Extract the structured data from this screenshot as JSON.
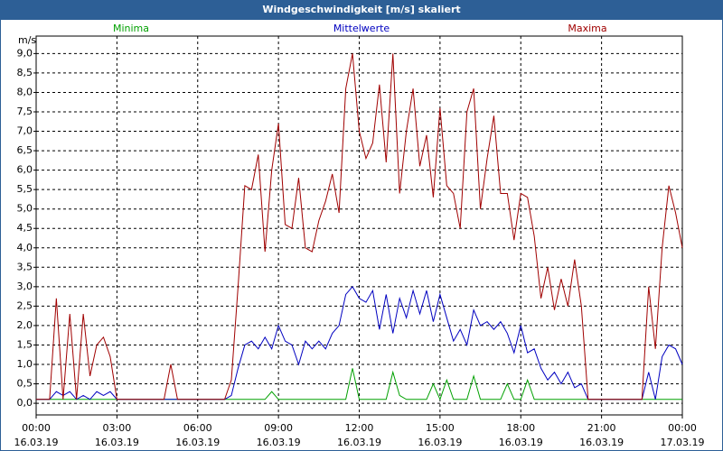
{
  "chart_data": {
    "type": "line",
    "title": "Windgeschwindigkeit [m/s] skaliert",
    "y_label": "m/s",
    "x": [
      0,
      0.25,
      0.5,
      0.75,
      1,
      1.25,
      1.5,
      1.75,
      2,
      2.25,
      2.5,
      2.75,
      3,
      3.25,
      3.5,
      3.75,
      4,
      4.25,
      4.5,
      4.75,
      5,
      5.25,
      5.5,
      5.75,
      6,
      6.25,
      6.5,
      6.75,
      7,
      7.25,
      7.5,
      7.75,
      8,
      8.25,
      8.5,
      8.75,
      9,
      9.25,
      9.5,
      9.75,
      10,
      10.25,
      10.5,
      10.75,
      11,
      11.25,
      11.5,
      11.75,
      12,
      12.25,
      12.5,
      12.75,
      13,
      13.25,
      13.5,
      13.75,
      14,
      14.25,
      14.5,
      14.75,
      15,
      15.25,
      15.5,
      15.75,
      16,
      16.25,
      16.5,
      16.75,
      17,
      17.25,
      17.5,
      17.75,
      18,
      18.25,
      18.5,
      18.75,
      19,
      19.25,
      19.5,
      19.75,
      20,
      20.25,
      20.5,
      20.75,
      21,
      21.25,
      21.5,
      21.75,
      22,
      22.25,
      22.5,
      22.75,
      23,
      23.25,
      23.5,
      23.75,
      24
    ],
    "series": [
      {
        "name": "Minima",
        "color": "#00a000",
        "values": [
          0.1,
          0.1,
          0.1,
          0.1,
          0.1,
          0.1,
          0.1,
          0.1,
          0.1,
          0.1,
          0.1,
          0.1,
          0.1,
          0.1,
          0.1,
          0.1,
          0.1,
          0.1,
          0.1,
          0.1,
          0.1,
          0.1,
          0.1,
          0.1,
          0.1,
          0.1,
          0.1,
          0.1,
          0.1,
          0.1,
          0.1,
          0.1,
          0.1,
          0.1,
          0.1,
          0.3,
          0.1,
          0.1,
          0.1,
          0.1,
          0.1,
          0.1,
          0.1,
          0.1,
          0.1,
          0.1,
          0.1,
          0.9,
          0.1,
          0.1,
          0.1,
          0.1,
          0.1,
          0.8,
          0.2,
          0.1,
          0.1,
          0.1,
          0.1,
          0.5,
          0.1,
          0.6,
          0.1,
          0.1,
          0.1,
          0.7,
          0.1,
          0.1,
          0.1,
          0.1,
          0.5,
          0.1,
          0.1,
          0.6,
          0.1,
          0.1,
          0.1,
          0.1,
          0.1,
          0.1,
          0.1,
          0.1,
          0.1,
          0.1,
          0.1,
          0.1,
          0.1,
          0.1,
          0.1,
          0.1,
          0.1,
          0.1,
          0.1,
          0.1,
          0.1,
          0.1,
          0.1
        ]
      },
      {
        "name": "Mittelwerte",
        "color": "#0000c0",
        "values": [
          0.1,
          0.1,
          0.1,
          0.3,
          0.2,
          0.3,
          0.1,
          0.2,
          0.1,
          0.3,
          0.2,
          0.3,
          0.1,
          0.1,
          0.1,
          0.1,
          0.1,
          0.1,
          0.1,
          0.1,
          0.1,
          0.1,
          0.1,
          0.1,
          0.1,
          0.1,
          0.1,
          0.1,
          0.1,
          0.2,
          0.9,
          1.5,
          1.6,
          1.4,
          1.7,
          1.4,
          2.0,
          1.6,
          1.5,
          1.0,
          1.6,
          1.4,
          1.6,
          1.4,
          1.8,
          2.0,
          2.8,
          3.0,
          2.7,
          2.6,
          2.9,
          1.9,
          2.8,
          1.8,
          2.7,
          2.2,
          2.9,
          2.3,
          2.9,
          2.1,
          2.8,
          2.2,
          1.6,
          1.9,
          1.5,
          2.4,
          2.0,
          2.1,
          1.9,
          2.1,
          1.8,
          1.3,
          2.0,
          1.3,
          1.4,
          0.9,
          0.6,
          0.8,
          0.5,
          0.8,
          0.4,
          0.5,
          0.1,
          0.1,
          0.1,
          0.1,
          0.1,
          0.1,
          0.1,
          0.1,
          0.1,
          0.8,
          0.1,
          1.2,
          1.5,
          1.4,
          1.0
        ]
      },
      {
        "name": "Maxima",
        "color": "#a00000",
        "values": [
          0.1,
          0.1,
          0.1,
          2.7,
          0.1,
          2.3,
          0.1,
          2.3,
          0.7,
          1.5,
          1.7,
          1.2,
          0.1,
          0.1,
          0.1,
          0.1,
          0.1,
          0.1,
          0.1,
          0.1,
          1.0,
          0.1,
          0.1,
          0.1,
          0.1,
          0.1,
          0.1,
          0.1,
          0.1,
          0.6,
          3.0,
          5.6,
          5.5,
          6.4,
          3.9,
          6.0,
          7.2,
          4.6,
          4.5,
          5.8,
          4.0,
          3.9,
          4.7,
          5.2,
          5.9,
          4.9,
          8.1,
          9.0,
          7.0,
          6.3,
          6.7,
          8.2,
          6.2,
          9.0,
          5.4,
          7.0,
          8.1,
          6.1,
          6.9,
          5.3,
          7.6,
          5.6,
          5.4,
          4.5,
          7.5,
          8.1,
          5.0,
          6.3,
          7.4,
          5.4,
          5.4,
          4.2,
          5.4,
          5.3,
          4.3,
          2.7,
          3.5,
          2.4,
          3.2,
          2.5,
          3.7,
          2.5,
          0.1,
          0.1,
          0.1,
          0.1,
          0.1,
          0.1,
          0.1,
          0.1,
          0.1,
          3.0,
          1.4,
          4.0,
          5.6,
          4.9,
          4.0
        ]
      }
    ],
    "xlim": [
      0,
      24
    ],
    "xticks": [
      {
        "value": 0,
        "label": "00:00\n16.03.19"
      },
      {
        "value": 3,
        "label": "03:00\n16.03.19"
      },
      {
        "value": 6,
        "label": "06:00\n16.03.19"
      },
      {
        "value": 9,
        "label": "09:00\n16.03.19"
      },
      {
        "value": 12,
        "label": "12:00\n16.03.19"
      },
      {
        "value": 15,
        "label": "15:00\n16.03.19"
      },
      {
        "value": 18,
        "label": "18:00\n16.03.19"
      },
      {
        "value": 21,
        "label": "21:00\n16.03.19"
      },
      {
        "value": 24,
        "label": "00:00\n17.03.19"
      }
    ],
    "ylim": [
      -0.3,
      9.45
    ],
    "yticks": [
      {
        "value": 0,
        "label": "0,0"
      },
      {
        "value": 0.5,
        "label": "0,5"
      },
      {
        "value": 1,
        "label": "1,0"
      },
      {
        "value": 1.5,
        "label": "1,5"
      },
      {
        "value": 2,
        "label": "2,0"
      },
      {
        "value": 2.5,
        "label": "2,5"
      },
      {
        "value": 3,
        "label": "3,0"
      },
      {
        "value": 3.5,
        "label": "3,5"
      },
      {
        "value": 4,
        "label": "4,0"
      },
      {
        "value": 4.5,
        "label": "4,5"
      },
      {
        "value": 5,
        "label": "5,0"
      },
      {
        "value": 5.5,
        "label": "5,5"
      },
      {
        "value": 6,
        "label": "6,0"
      },
      {
        "value": 6.5,
        "label": "6,5"
      },
      {
        "value": 7,
        "label": "7,0"
      },
      {
        "value": 7.5,
        "label": "7,5"
      },
      {
        "value": 8,
        "label": "8,0"
      },
      {
        "value": 8.5,
        "label": "8,5"
      },
      {
        "value": 9,
        "label": "9,0"
      }
    ],
    "grid": true
  }
}
